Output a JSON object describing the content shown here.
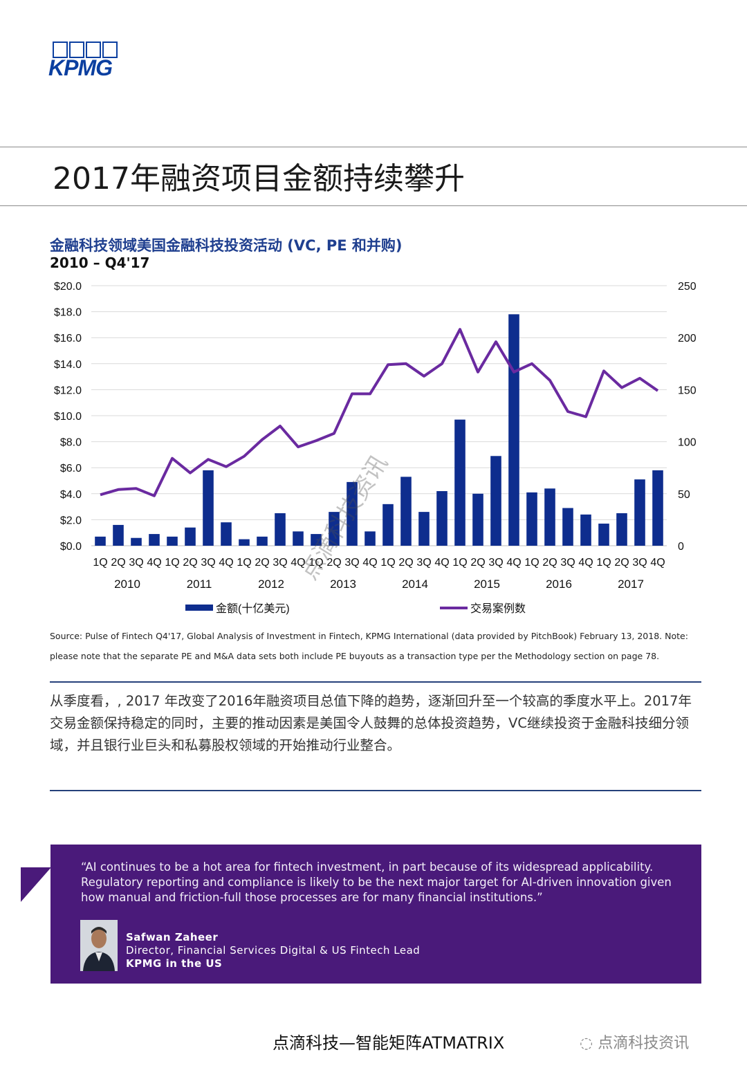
{
  "brand": {
    "logo_text": "KPMG"
  },
  "page_title": "2017年融资项目金额持续攀升",
  "chart_heading": {
    "title": "金融科技领域美国金融科技投资活动 (VC, PE 和并购)",
    "subtitle": "2010 – Q4'17"
  },
  "chart_data": {
    "type": "bar",
    "categories": [
      "1Q",
      "2Q",
      "3Q",
      "4Q",
      "1Q",
      "2Q",
      "3Q",
      "4Q",
      "1Q",
      "2Q",
      "3Q",
      "4Q",
      "1Q",
      "2Q",
      "3Q",
      "4Q",
      "1Q",
      "2Q",
      "3Q",
      "4Q",
      "1Q",
      "2Q",
      "3Q",
      "4Q",
      "1Q",
      "2Q",
      "3Q",
      "4Q",
      "1Q",
      "2Q",
      "3Q",
      "4Q"
    ],
    "year_labels": [
      "2010",
      "2011",
      "2012",
      "2013",
      "2014",
      "2015",
      "2016",
      "2017"
    ],
    "series": [
      {
        "name": "金额(十亿美元)",
        "type": "bar",
        "axis": "left",
        "color": "#0e2d8e",
        "values": [
          0.7,
          1.6,
          0.6,
          0.9,
          0.7,
          1.4,
          5.8,
          1.8,
          0.5,
          0.7,
          2.5,
          1.1,
          0.9,
          2.6,
          4.9,
          1.1,
          3.2,
          5.3,
          2.6,
          4.2,
          9.7,
          4.0,
          6.9,
          17.8,
          4.1,
          4.4,
          2.9,
          2.4,
          1.7,
          2.5,
          5.1,
          5.8
        ]
      },
      {
        "name": "交易案例数",
        "type": "line",
        "axis": "right",
        "color": "#6a2aa0",
        "values": [
          49,
          54,
          55,
          48,
          84,
          70,
          83,
          76,
          86,
          102,
          115,
          95,
          101,
          108,
          146,
          146,
          174,
          175,
          163,
          175,
          208,
          167,
          196,
          167,
          175,
          159,
          129,
          124,
          168,
          152,
          161,
          149
        ]
      }
    ],
    "y_left": {
      "min": 0,
      "max": 20,
      "ticks": [
        "$0.0",
        "$2.0",
        "$4.0",
        "$6.0",
        "$8.0",
        "$10.0",
        "$12.0",
        "$14.0",
        "$16.0",
        "$18.0",
        "$20.0"
      ]
    },
    "y_right": {
      "min": 0,
      "max": 250,
      "ticks": [
        "0",
        "50",
        "100",
        "150",
        "200",
        "250"
      ]
    },
    "legend_position": "bottom",
    "grid": true
  },
  "source_note": "Source: Pulse of Fintech Q4'17, Global Analysis of Investment in Fintech, KPMG International (data provided by PitchBook) February 13, 2018. Note: please note that the separate PE and M&A data sets both include PE buyouts as a transaction type per the Methodology section on page 78.",
  "body_text": "从季度看，, 2017 年改变了2016年融资项目总值下降的趋势，逐渐回升至一个较高的季度水平上。2017年交易金额保持稳定的同时，主要的推动因素是美国令人鼓舞的总体投资趋势，VC继续投资于金融科技细分领域，并且银行业巨头和私募股权领域的开始推动行业整合。",
  "quote": {
    "text": "“AI continues to be a hot area for fintech investment, in part because of its widespread applicability. Regulatory reporting and compliance is likely to be the next major target for AI-driven innovation given how manual and friction-full those processes are for many financial institutions.”",
    "speaker_name": "Safwan Zaheer",
    "speaker_title": "Director, Financial Services Digital & US Fintech Lead",
    "speaker_org": "KPMG in the US"
  },
  "footer": {
    "text": "点滴科技—智能矩阵ATMATRIX",
    "wechat_account": "点滴科技资讯"
  },
  "watermark": "点滴科技资讯",
  "colors": {
    "bar": "#0e2d8e",
    "line": "#6a2aa0",
    "title_blue": "#1f3f8f",
    "quote_bg": "#4a1a7a"
  }
}
